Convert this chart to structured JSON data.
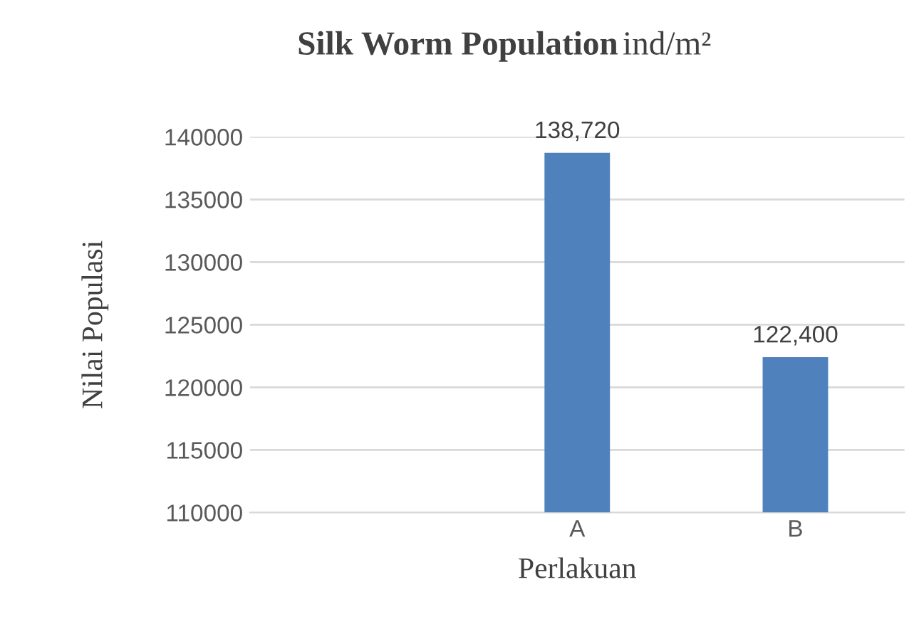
{
  "chart_data": {
    "type": "bar",
    "title": "Silk Worm Population",
    "subtitle": "ind/m²",
    "xlabel": "Perlakuan",
    "ylabel": "Nilai Populasi",
    "categories": [
      null,
      "A",
      "B"
    ],
    "values": [
      null,
      138720,
      122400
    ],
    "value_labels": [
      null,
      "138,720",
      "122,400"
    ],
    "color": "#4f81bd",
    "ylim": [
      110000,
      140000
    ],
    "yticks": [
      110000,
      115000,
      120000,
      125000,
      130000,
      135000,
      140000
    ],
    "grid": "y"
  }
}
